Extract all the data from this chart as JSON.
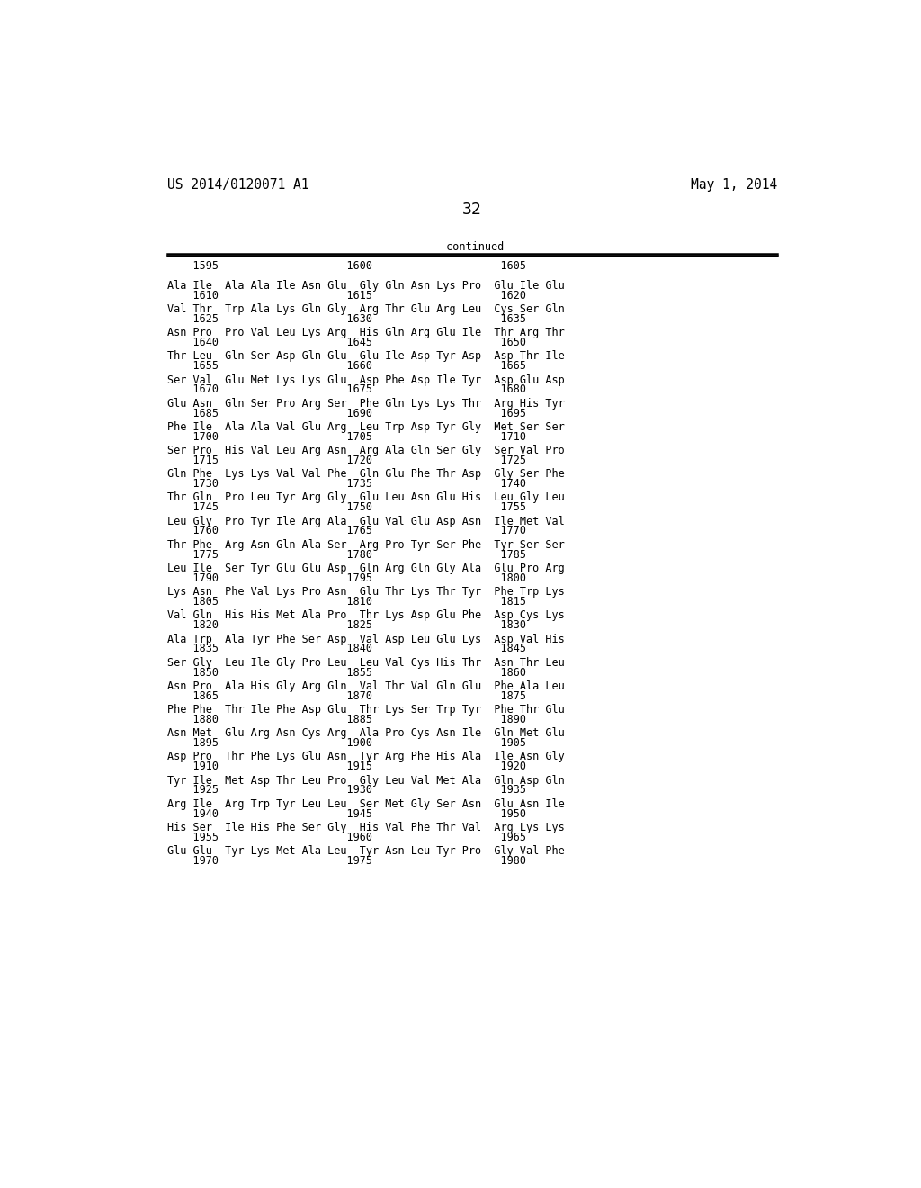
{
  "header_left": "US 2014/0120071 A1",
  "header_right": "May 1, 2014",
  "page_number": "32",
  "continued_label": "-continued",
  "background_color": "#ffffff",
  "text_color": "#000000",
  "header_fontsize": 10.5,
  "body_fontsize": 8.5,
  "page_num_fontsize": 13,
  "number_row": "    1595                    1600                    1605",
  "sequence_entries": [
    [
      "Ala Ile  Ala Ala Ile Asn Glu  Gly Gln Asn Lys Pro  Glu Ile Glu",
      "    1610                    1615                    1620"
    ],
    [
      "Val Thr  Trp Ala Lys Gln Gly  Arg Thr Glu Arg Leu  Cys Ser Gln",
      "    1625                    1630                    1635"
    ],
    [
      "Asn Pro  Pro Val Leu Lys Arg  His Gln Arg Glu Ile  Thr Arg Thr",
      "    1640                    1645                    1650"
    ],
    [
      "Thr Leu  Gln Ser Asp Gln Glu  Glu Ile Asp Tyr Asp  Asp Thr Ile",
      "    1655                    1660                    1665"
    ],
    [
      "Ser Val  Glu Met Lys Lys Glu  Asp Phe Asp Ile Tyr  Asp Glu Asp",
      "    1670                    1675                    1680"
    ],
    [
      "Glu Asn  Gln Ser Pro Arg Ser  Phe Gln Lys Lys Thr  Arg His Tyr",
      "    1685                    1690                    1695"
    ],
    [
      "Phe Ile  Ala Ala Val Glu Arg  Leu Trp Asp Tyr Gly  Met Ser Ser",
      "    1700                    1705                    1710"
    ],
    [
      "Ser Pro  His Val Leu Arg Asn  Arg Ala Gln Ser Gly  Ser Val Pro",
      "    1715                    1720                    1725"
    ],
    [
      "Gln Phe  Lys Lys Val Val Phe  Gln Glu Phe Thr Asp  Gly Ser Phe",
      "    1730                    1735                    1740"
    ],
    [
      "Thr Gln  Pro Leu Tyr Arg Gly  Glu Leu Asn Glu His  Leu Gly Leu",
      "    1745                    1750                    1755"
    ],
    [
      "Leu Gly  Pro Tyr Ile Arg Ala  Glu Val Glu Asp Asn  Ile Met Val",
      "    1760                    1765                    1770"
    ],
    [
      "Thr Phe  Arg Asn Gln Ala Ser  Arg Pro Tyr Ser Phe  Tyr Ser Ser",
      "    1775                    1780                    1785"
    ],
    [
      "Leu Ile  Ser Tyr Glu Glu Asp  Gln Arg Gln Gly Ala  Glu Pro Arg",
      "    1790                    1795                    1800"
    ],
    [
      "Lys Asn  Phe Val Lys Pro Asn  Glu Thr Lys Thr Tyr  Phe Trp Lys",
      "    1805                    1810                    1815"
    ],
    [
      "Val Gln  His His Met Ala Pro  Thr Lys Asp Glu Phe  Asp Cys Lys",
      "    1820                    1825                    1830"
    ],
    [
      "Ala Trp  Ala Tyr Phe Ser Asp  Val Asp Leu Glu Lys  Asp Val His",
      "    1835                    1840                    1845"
    ],
    [
      "Ser Gly  Leu Ile Gly Pro Leu  Leu Val Cys His Thr  Asn Thr Leu",
      "    1850                    1855                    1860"
    ],
    [
      "Asn Pro  Ala His Gly Arg Gln  Val Thr Val Gln Glu  Phe Ala Leu",
      "    1865                    1870                    1875"
    ],
    [
      "Phe Phe  Thr Ile Phe Asp Glu  Thr Lys Ser Trp Tyr  Phe Thr Glu",
      "    1880                    1885                    1890"
    ],
    [
      "Asn Met  Glu Arg Asn Cys Arg  Ala Pro Cys Asn Ile  Gln Met Glu",
      "    1895                    1900                    1905"
    ],
    [
      "Asp Pro  Thr Phe Lys Glu Asn  Tyr Arg Phe His Ala  Ile Asn Gly",
      "    1910                    1915                    1920"
    ],
    [
      "Tyr Ile  Met Asp Thr Leu Pro  Gly Leu Val Met Ala  Gln Asp Gln",
      "    1925                    1930                    1935"
    ],
    [
      "Arg Ile  Arg Trp Tyr Leu Leu  Ser Met Gly Ser Asn  Glu Asn Ile",
      "    1940                    1945                    1950"
    ],
    [
      "His Ser  Ile His Phe Ser Gly  His Val Phe Thr Val  Arg Lys Lys",
      "    1955                    1960                    1965"
    ],
    [
      "Glu Glu  Tyr Lys Met Ala Leu  Tyr Asn Leu Tyr Pro  Gly Val Phe",
      "    1970                    1975                    1980"
    ]
  ]
}
